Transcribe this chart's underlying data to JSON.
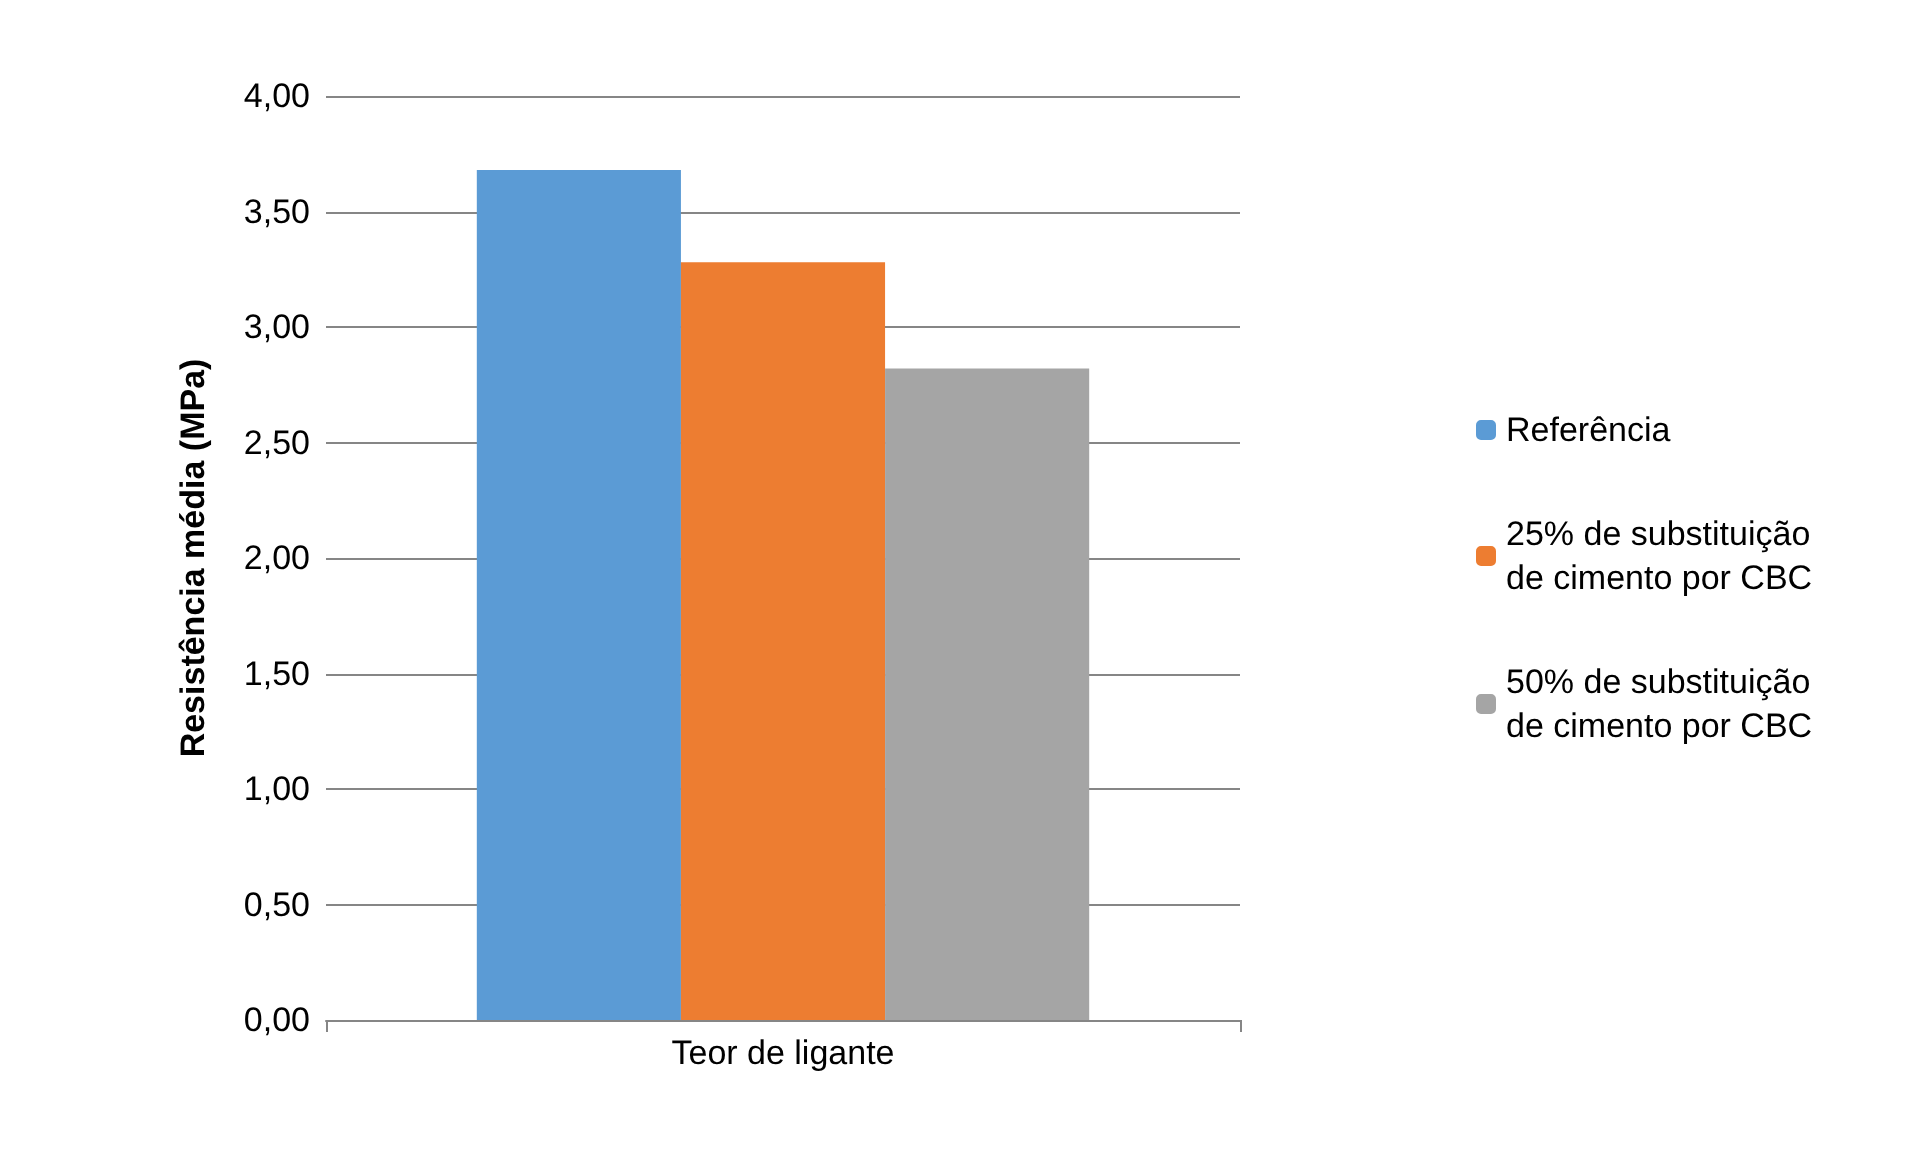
{
  "chart_data": {
    "type": "bar",
    "ylabel": "Resistência média (MPa)",
    "categories": [
      "Teor de ligante"
    ],
    "series": [
      {
        "name": "Referência",
        "color": "#5b9bd5",
        "values": [
          3.68
        ]
      },
      {
        "name": "25% de substituição de cimento por CBC",
        "color": "#ed7d31",
        "values": [
          3.28
        ]
      },
      {
        "name": "50% de substituição de cimento por CBC",
        "color": "#a5a5a5",
        "values": [
          2.82
        ]
      }
    ],
    "ylim": [
      0,
      4
    ],
    "yticks": [
      {
        "value": 0,
        "label": "0,00"
      },
      {
        "value": 0.5,
        "label": "0,50"
      },
      {
        "value": 1,
        "label": "1,00"
      },
      {
        "value": 1.5,
        "label": "1,50"
      },
      {
        "value": 2,
        "label": "2,00"
      },
      {
        "value": 2.5,
        "label": "2,50"
      },
      {
        "value": 3,
        "label": "3,00"
      },
      {
        "value": 3.5,
        "label": "3,50"
      },
      {
        "value": 4,
        "label": "4,00"
      }
    ],
    "grid": "y",
    "legend": "right"
  }
}
